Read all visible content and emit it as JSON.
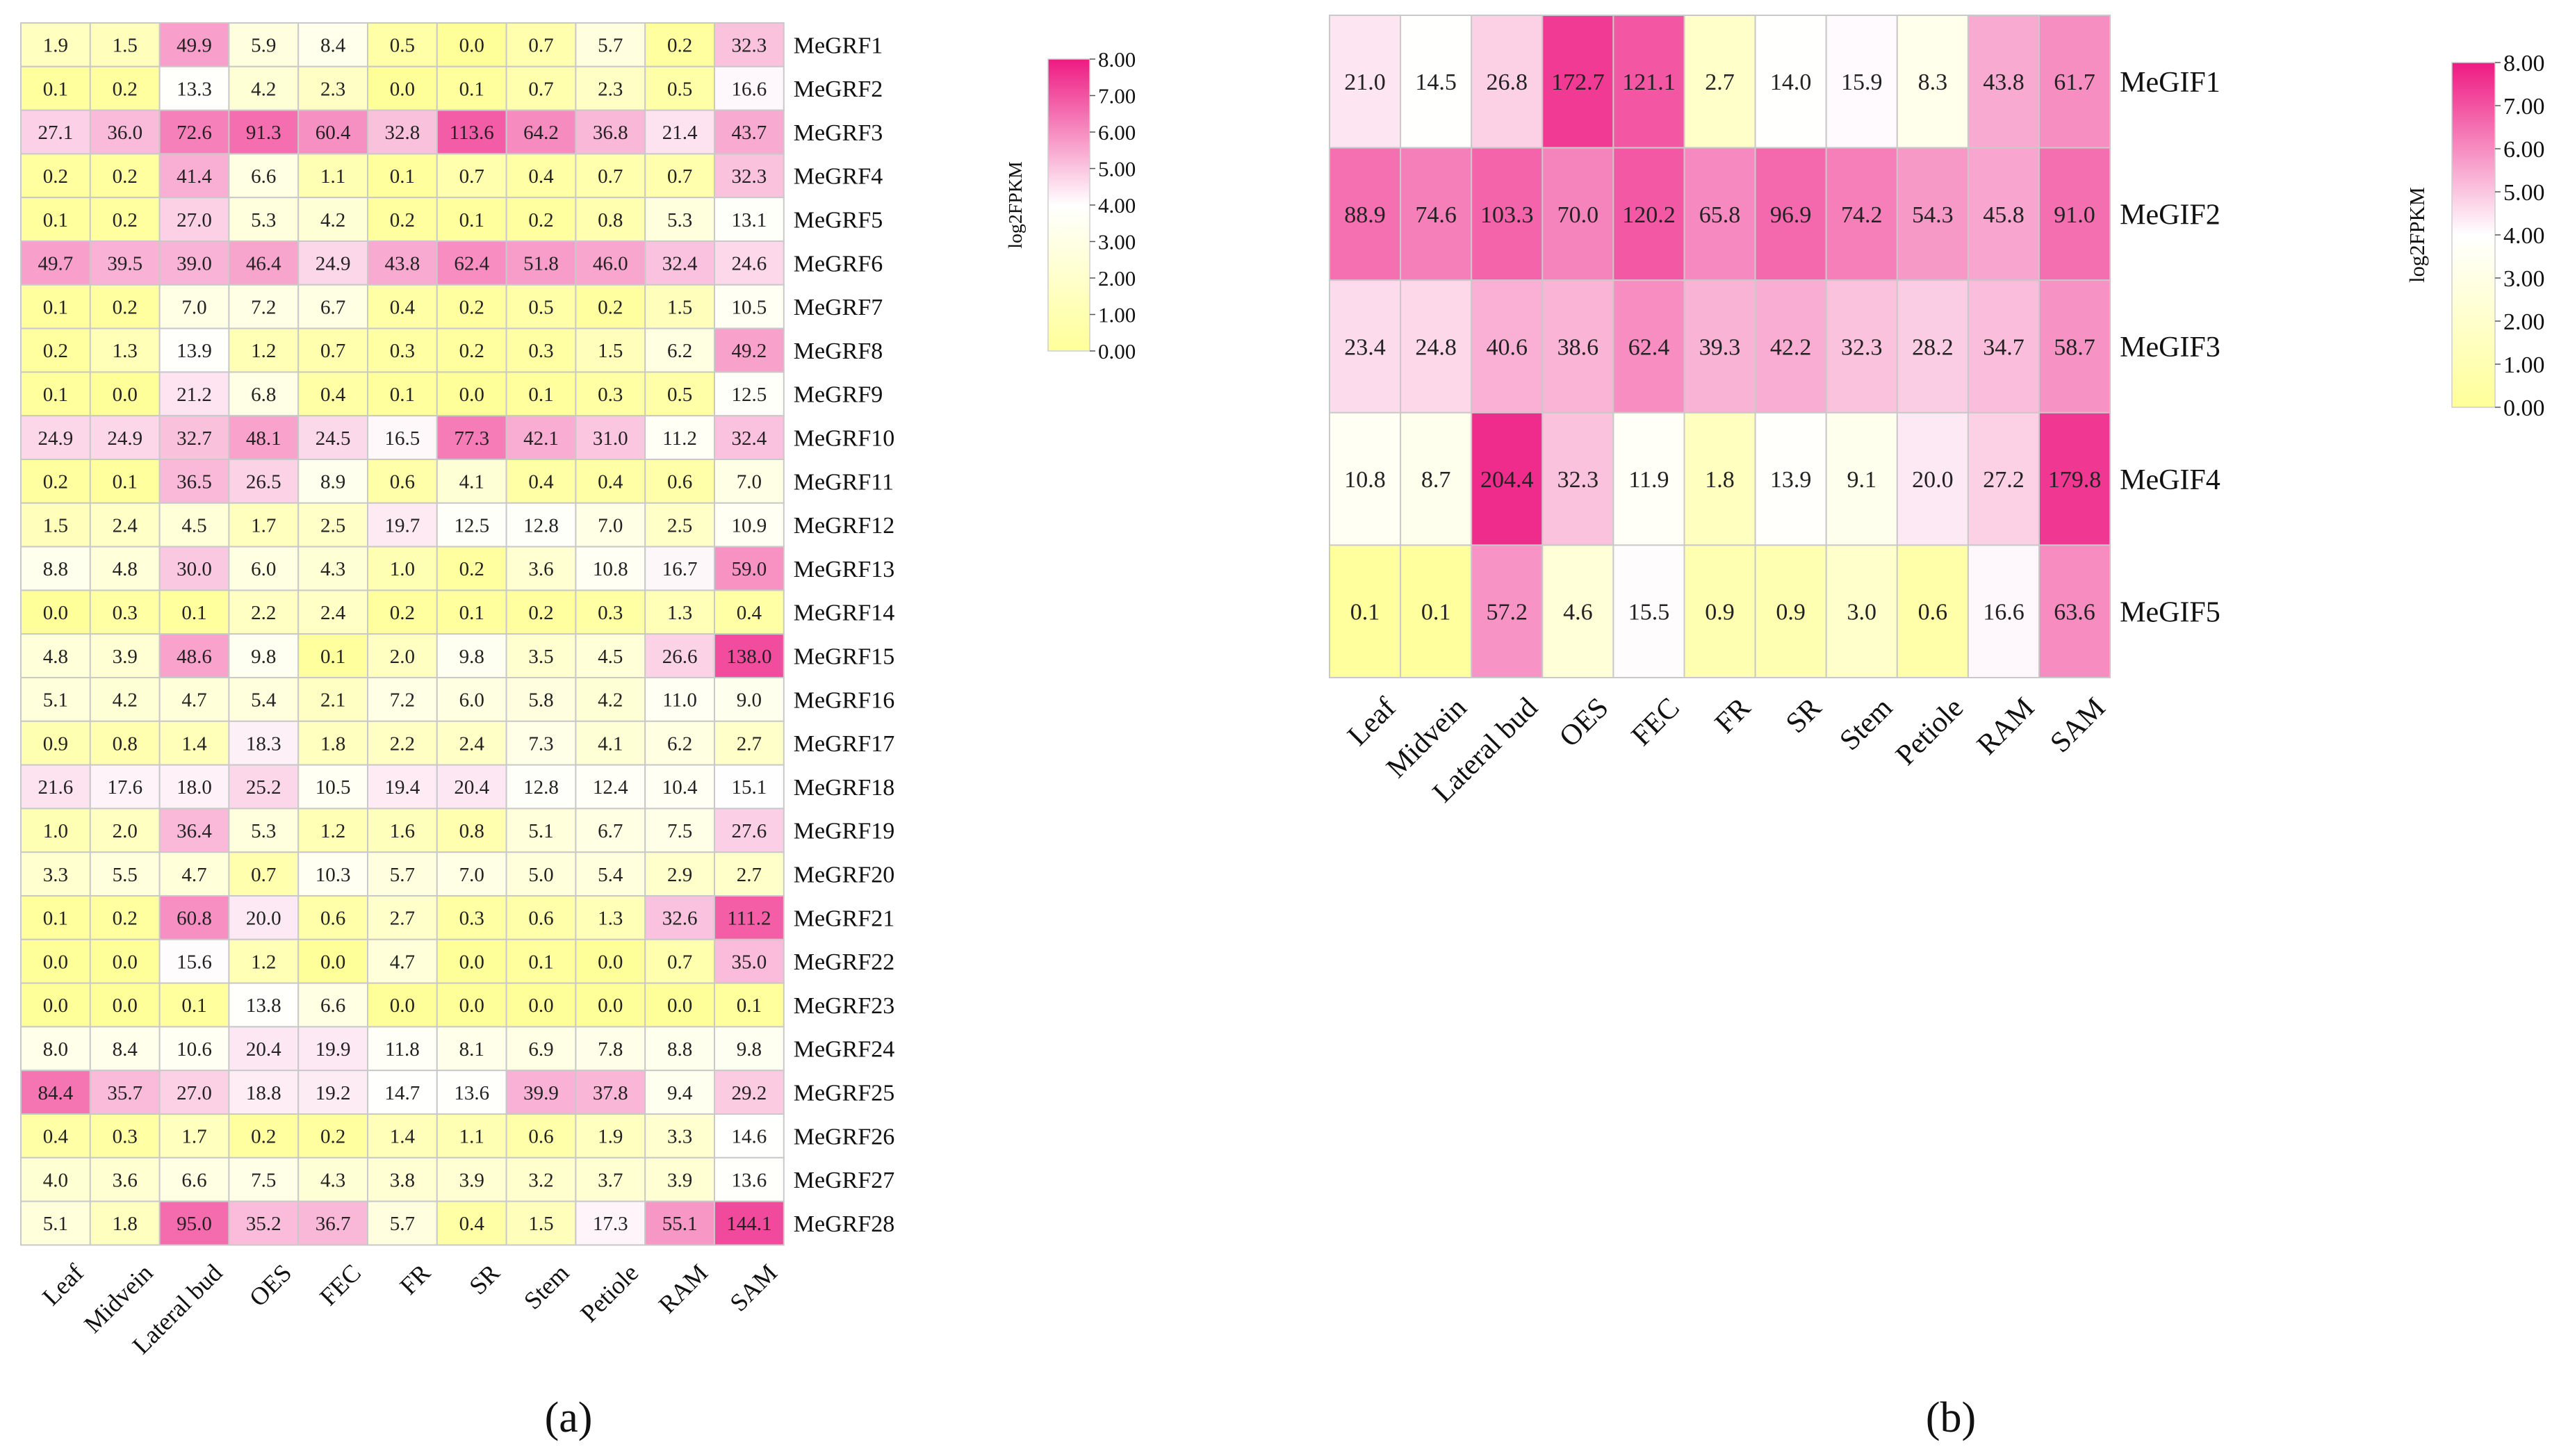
{
  "chart_data": [
    {
      "type": "heatmap",
      "panel_label": "(a)",
      "categories": [
        "Leaf",
        "Midvein",
        "Lateral bud",
        "OES",
        "FEC",
        "FR",
        "SR",
        "Stem",
        "Petiole",
        "RAM",
        "SAM"
      ],
      "rows": [
        "MeGRF1",
        "MeGRF2",
        "MeGRF3",
        "MeGRF4",
        "MeGRF5",
        "MeGRF6",
        "MeGRF7",
        "MeGRF8",
        "MeGRF9",
        "MeGRF10",
        "MeGRF11",
        "MeGRF12",
        "MeGRF13",
        "MeGRF14",
        "MeGRF15",
        "MeGRF16",
        "MeGRF17",
        "MeGRF18",
        "MeGRF19",
        "MeGRF20",
        "MeGRF21",
        "MeGRF22",
        "MeGRF23",
        "MeGRF24",
        "MeGRF25",
        "MeGRF26",
        "MeGRF27",
        "MeGRF28"
      ],
      "values": [
        [
          "1.9",
          "1.5",
          "49.9",
          "5.9",
          "8.4",
          "0.5",
          "0.0",
          "0.7",
          "5.7",
          "0.2",
          "32.3"
        ],
        [
          "0.1",
          "0.2",
          "13.3",
          "4.2",
          "2.3",
          "0.0",
          "0.1",
          "0.7",
          "2.3",
          "0.5",
          "16.6"
        ],
        [
          "27.1",
          "36.0",
          "72.6",
          "91.3",
          "60.4",
          "32.8",
          "113.6",
          "64.2",
          "36.8",
          "21.4",
          "43.7"
        ],
        [
          "0.2",
          "0.2",
          "41.4",
          "6.6",
          "1.1",
          "0.1",
          "0.7",
          "0.4",
          "0.7",
          "0.7",
          "32.3"
        ],
        [
          "0.1",
          "0.2",
          "27.0",
          "5.3",
          "4.2",
          "0.2",
          "0.1",
          "0.2",
          "0.8",
          "5.3",
          "13.1"
        ],
        [
          "49.7",
          "39.5",
          "39.0",
          "46.4",
          "24.9",
          "43.8",
          "62.4",
          "51.8",
          "46.0",
          "32.4",
          "24.6"
        ],
        [
          "0.1",
          "0.2",
          "7.0",
          "7.2",
          "6.7",
          "0.4",
          "0.2",
          "0.5",
          "0.2",
          "1.5",
          "10.5"
        ],
        [
          "0.2",
          "1.3",
          "13.9",
          "1.2",
          "0.7",
          "0.3",
          "0.2",
          "0.3",
          "1.5",
          "6.2",
          "49.2"
        ],
        [
          "0.1",
          "0.0",
          "21.2",
          "6.8",
          "0.4",
          "0.1",
          "0.0",
          "0.1",
          "0.3",
          "0.5",
          "12.5"
        ],
        [
          "24.9",
          "24.9",
          "32.7",
          "48.1",
          "24.5",
          "16.5",
          "77.3",
          "42.1",
          "31.0",
          "11.2",
          "32.4"
        ],
        [
          "0.2",
          "0.1",
          "36.5",
          "26.5",
          "8.9",
          "0.6",
          "4.1",
          "0.4",
          "0.4",
          "0.6",
          "7.0"
        ],
        [
          "1.5",
          "2.4",
          "4.5",
          "1.7",
          "2.5",
          "19.7",
          "12.5",
          "12.8",
          "7.0",
          "2.5",
          "10.9"
        ],
        [
          "8.8",
          "4.8",
          "30.0",
          "6.0",
          "4.3",
          "1.0",
          "0.2",
          "3.6",
          "10.8",
          "16.7",
          "59.0"
        ],
        [
          "0.0",
          "0.3",
          "0.1",
          "2.2",
          "2.4",
          "0.2",
          "0.1",
          "0.2",
          "0.3",
          "1.3",
          "0.4"
        ],
        [
          "4.8",
          "3.9",
          "48.6",
          "9.8",
          "0.1",
          "2.0",
          "9.8",
          "3.5",
          "4.5",
          "26.6",
          "138.0"
        ],
        [
          "5.1",
          "4.2",
          "4.7",
          "5.4",
          "2.1",
          "7.2",
          "6.0",
          "5.8",
          "4.2",
          "11.0",
          "9.0"
        ],
        [
          "0.9",
          "0.8",
          "1.4",
          "18.3",
          "1.8",
          "2.2",
          "2.4",
          "7.3",
          "4.1",
          "6.2",
          "2.7"
        ],
        [
          "21.6",
          "17.6",
          "18.0",
          "25.2",
          "10.5",
          "19.4",
          "20.4",
          "12.8",
          "12.4",
          "10.4",
          "15.1"
        ],
        [
          "1.0",
          "2.0",
          "36.4",
          "5.3",
          "1.2",
          "1.6",
          "0.8",
          "5.1",
          "6.7",
          "7.5",
          "27.6"
        ],
        [
          "3.3",
          "5.5",
          "4.7",
          "0.7",
          "10.3",
          "5.7",
          "7.0",
          "5.0",
          "5.4",
          "2.9",
          "2.7"
        ],
        [
          "0.1",
          "0.2",
          "60.8",
          "20.0",
          "0.6",
          "2.7",
          "0.3",
          "0.6",
          "1.3",
          "32.6",
          "111.2"
        ],
        [
          "0.0",
          "0.0",
          "15.6",
          "1.2",
          "0.0",
          "4.7",
          "0.0",
          "0.1",
          "0.0",
          "0.7",
          "35.0"
        ],
        [
          "0.0",
          "0.0",
          "0.1",
          "13.8",
          "6.6",
          "0.0",
          "0.0",
          "0.0",
          "0.0",
          "0.0",
          "0.1"
        ],
        [
          "8.0",
          "8.4",
          "10.6",
          "20.4",
          "19.9",
          "11.8",
          "8.1",
          "6.9",
          "7.8",
          "8.8",
          "9.8"
        ],
        [
          "84.4",
          "35.7",
          "27.0",
          "18.8",
          "19.2",
          "14.7",
          "13.6",
          "39.9",
          "37.8",
          "9.4",
          "29.2"
        ],
        [
          "0.4",
          "0.3",
          "1.7",
          "0.2",
          "0.2",
          "1.4",
          "1.1",
          "0.6",
          "1.9",
          "3.3",
          "14.6"
        ],
        [
          "4.0",
          "3.6",
          "6.6",
          "7.5",
          "4.3",
          "3.8",
          "3.9",
          "3.2",
          "3.7",
          "3.9",
          "13.6"
        ],
        [
          "5.1",
          "1.8",
          "95.0",
          "35.2",
          "36.7",
          "5.7",
          "0.4",
          "1.5",
          "17.3",
          "55.1",
          "144.1"
        ]
      ],
      "colorbar": {
        "title": "log2FPKM",
        "ticks": [
          "8.00",
          "7.00",
          "6.00",
          "5.00",
          "4.00",
          "3.00",
          "2.00",
          "1.00",
          "0.00"
        ],
        "range": [
          0,
          8
        ],
        "colors": [
          "#ffff99",
          "#ffffff",
          "#ee1a82"
        ]
      }
    },
    {
      "type": "heatmap",
      "panel_label": "(b)",
      "categories": [
        "Leaf",
        "Midvein",
        "Lateral bud",
        "OES",
        "FEC",
        "FR",
        "SR",
        "Stem",
        "Petiole",
        "RAM",
        "SAM"
      ],
      "rows": [
        "MeGIF1",
        "MeGIF2",
        "MeGIF3",
        "MeGIF4",
        "MeGIF5"
      ],
      "values": [
        [
          "21.0",
          "14.5",
          "26.8",
          "172.7",
          "121.1",
          "2.7",
          "14.0",
          "15.9",
          "8.3",
          "43.8",
          "61.7"
        ],
        [
          "88.9",
          "74.6",
          "103.3",
          "70.0",
          "120.2",
          "65.8",
          "96.9",
          "74.2",
          "54.3",
          "45.8",
          "91.0"
        ],
        [
          "23.4",
          "24.8",
          "40.6",
          "38.6",
          "62.4",
          "39.3",
          "42.2",
          "32.3",
          "28.2",
          "34.7",
          "58.7"
        ],
        [
          "10.8",
          "8.7",
          "204.4",
          "32.3",
          "11.9",
          "1.8",
          "13.9",
          "9.1",
          "20.0",
          "27.2",
          "179.8"
        ],
        [
          "0.1",
          "0.1",
          "57.2",
          "4.6",
          "15.5",
          "0.9",
          "0.9",
          "3.0",
          "0.6",
          "16.6",
          "63.6"
        ]
      ],
      "colorbar": {
        "title": "log2FPKM",
        "ticks": [
          "8.00",
          "7.00",
          "6.00",
          "5.00",
          "4.00",
          "3.00",
          "2.00",
          "1.00",
          "0.00"
        ],
        "range": [
          0,
          8
        ],
        "colors": [
          "#ffff99",
          "#ffffff",
          "#ee1a82"
        ]
      }
    }
  ]
}
